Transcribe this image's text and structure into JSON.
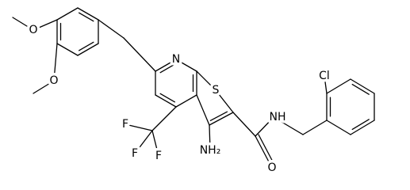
{
  "atoms": [
    {
      "label": "O"
    },
    {
      "label": "O"
    },
    {
      "label": "N"
    },
    {
      "label": "S"
    },
    {
      "label": "F"
    },
    {
      "label": "F"
    },
    {
      "label": "F"
    },
    {
      "label": "NH₂"
    },
    {
      "label": "NH"
    },
    {
      "label": "O"
    },
    {
      "label": "Cl"
    }
  ]
}
